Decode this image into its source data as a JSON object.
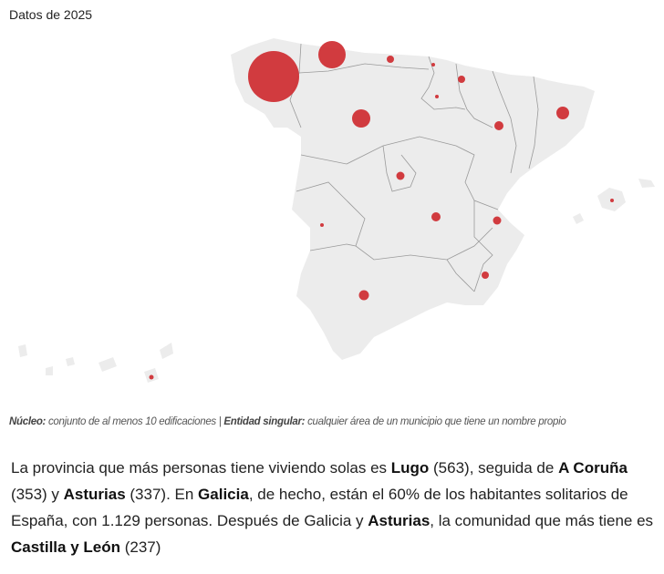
{
  "map": {
    "title": "Datos de 2025",
    "land_color": "#ececec",
    "border_color": "#9a9a9a",
    "bubble_color": "#d03236"
  },
  "note": {
    "term1": "Núcleo:",
    "def1": " conjunto de al menos 10 edificaciones | ",
    "term2": "Entidad singular:",
    "def2": " cualquier área de un municipio que tiene un nombre propio"
  },
  "paragraph": {
    "t1": "La provincia que más personas tiene viviendo solas es ",
    "b1": "Lugo",
    "t2": " (563), seguida de ",
    "b2": "A Coruña",
    "t3": " (353) y ",
    "b3": "Asturias",
    "t4": " (337). En ",
    "b4": "Galicia",
    "t5": ", de hecho, están el 60% de los habitantes solitarios de España, con 1.129 personas. Después de Galicia y ",
    "b5": "Asturias",
    "t6": ", la comunidad que más tiene es ",
    "b6": "Castilla y León",
    "t7": " (237)"
  }
}
